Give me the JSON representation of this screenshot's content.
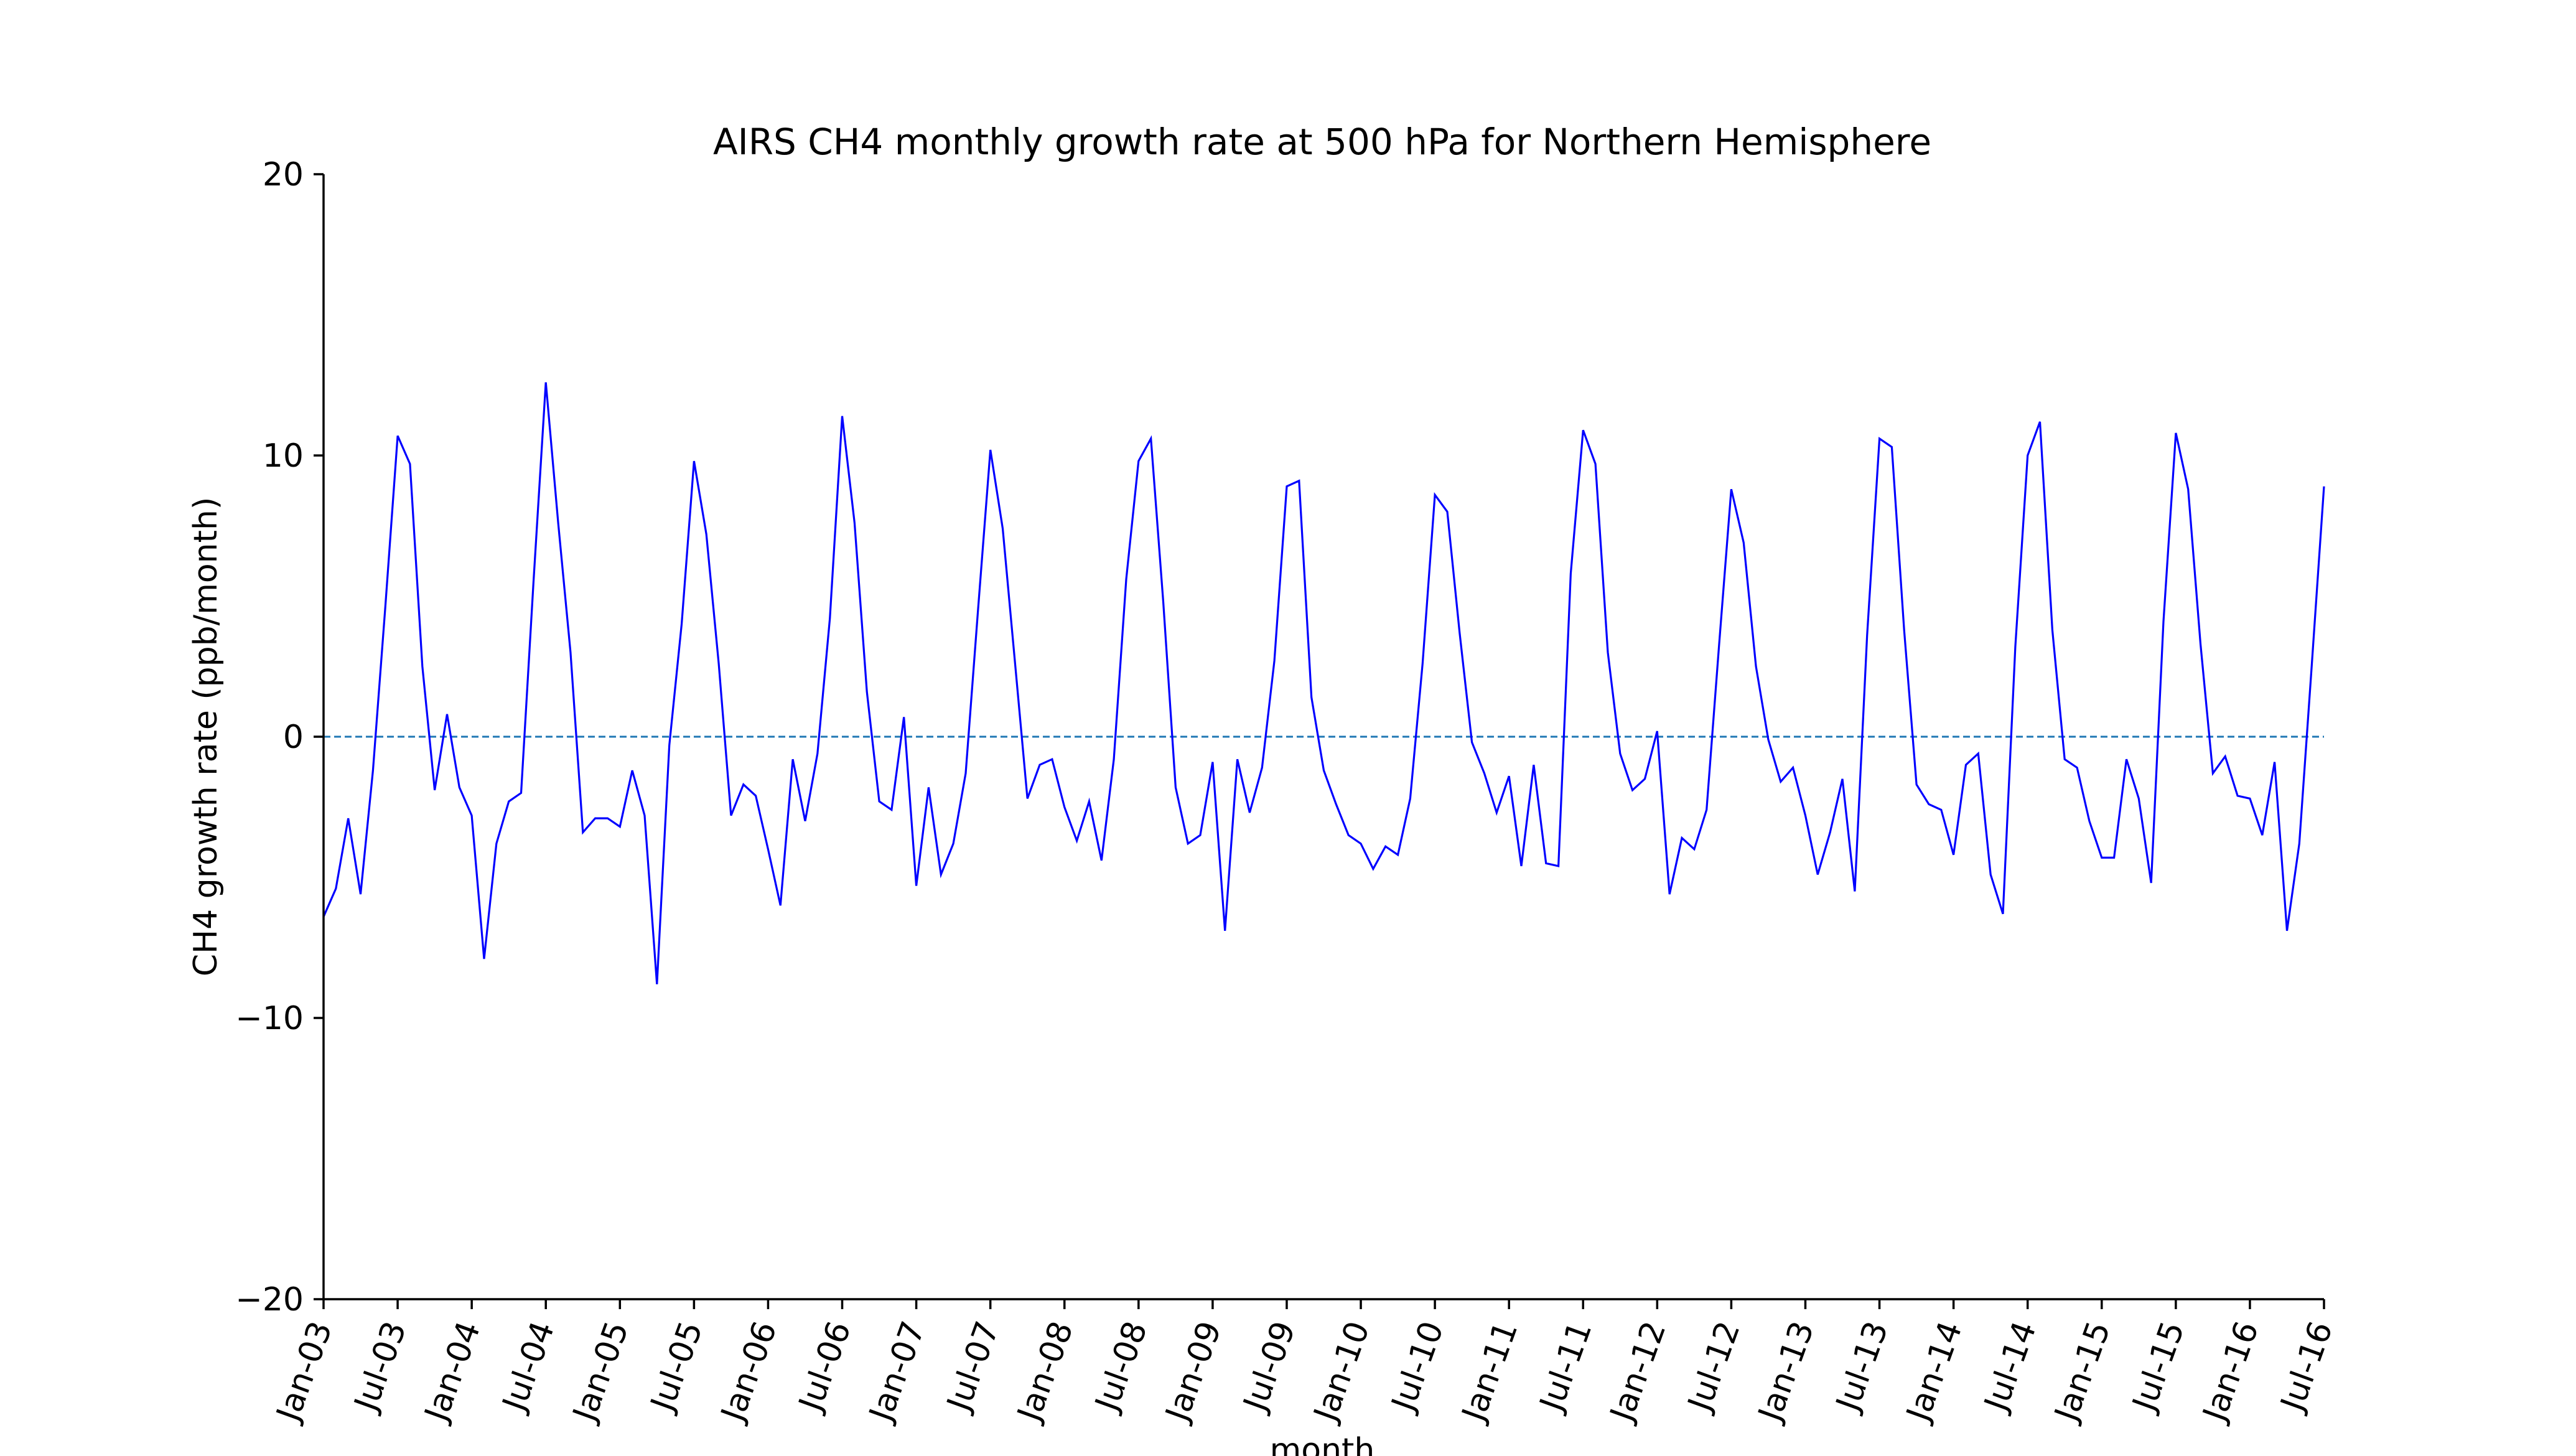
{
  "chart_data": {
    "type": "line",
    "title": "AIRS CH4 monthly growth rate at 500 hPa for Northern Hemisphere",
    "xlabel": "month",
    "ylabel": "CH4 growth rate (ppb/month)",
    "ylim": [
      -20,
      20
    ],
    "yticks": [
      -20,
      -10,
      0,
      10,
      20
    ],
    "ytick_labels": [
      "−20",
      "−10",
      "0",
      "10",
      "20"
    ],
    "xlim": [
      "Jan-03",
      "Jul-16"
    ],
    "xticks": [
      "Jan-03",
      "Jul-03",
      "Jan-04",
      "Jul-04",
      "Jan-05",
      "Jul-05",
      "Jan-06",
      "Jul-06",
      "Jan-07",
      "Jul-07",
      "Jan-08",
      "Jul-08",
      "Jan-09",
      "Jul-09",
      "Jan-10",
      "Jul-10",
      "Jan-11",
      "Jul-11",
      "Jan-12",
      "Jul-12",
      "Jan-13",
      "Jul-13",
      "Jan-14",
      "Jul-14",
      "Jan-15",
      "Jul-15",
      "Jan-16",
      "Jul-16"
    ],
    "grid": false,
    "reference_line": {
      "y": 0,
      "style": "dashed",
      "color": "#1f77b4"
    },
    "series": [
      {
        "color": "#0000ff",
        "x_start": "Jan-03",
        "x_step": "1 month",
        "values": [
          -6.4,
          -5.4,
          -2.9,
          -5.6,
          -1.2,
          4.6,
          10.7,
          9.7,
          2.5,
          -1.9,
          0.8,
          -1.8,
          -2.8,
          -7.9,
          -3.8,
          -2.3,
          -2.0,
          5.5,
          12.6,
          7.6,
          3.0,
          -3.4,
          -2.9,
          -2.9,
          -3.2,
          -1.2,
          -2.8,
          -8.8,
          -0.3,
          4.0,
          9.8,
          7.2,
          2.6,
          -2.8,
          -1.7,
          -2.1,
          -4.0,
          -6.0,
          -0.8,
          -3.0,
          -0.6,
          4.2,
          11.4,
          7.6,
          1.6,
          -2.3,
          -2.6,
          0.7,
          -5.3,
          -1.8,
          -4.9,
          -3.8,
          -1.3,
          4.5,
          10.2,
          7.4,
          2.6,
          -2.2,
          -1.0,
          -0.8,
          -2.5,
          -3.7,
          -2.3,
          -4.4,
          -0.8,
          5.6,
          9.8,
          10.6,
          4.8,
          -1.8,
          -3.8,
          -3.5,
          -0.9,
          -6.9,
          -0.8,
          -2.7,
          -1.1,
          2.7,
          8.9,
          9.1,
          1.4,
          -1.2,
          -2.4,
          -3.5,
          -3.8,
          -4.7,
          -3.9,
          -4.2,
          -2.2,
          2.6,
          8.6,
          8.0,
          3.7,
          -0.2,
          -1.3,
          -2.7,
          -1.4,
          -4.6,
          -1.0,
          -4.5,
          -4.6,
          5.8,
          10.9,
          9.7,
          3.0,
          -0.6,
          -1.9,
          -1.5,
          0.2,
          -5.6,
          -3.6,
          -4.0,
          -2.6,
          3.2,
          8.8,
          6.9,
          2.5,
          -0.1,
          -1.6,
          -1.1,
          -2.8,
          -4.9,
          -3.4,
          -1.5,
          -5.5,
          3.6,
          10.6,
          10.3,
          3.8,
          -1.7,
          -2.4,
          -2.6,
          -4.2,
          -1.0,
          -0.6,
          -4.9,
          -6.3,
          3.2,
          10.0,
          11.2,
          3.8,
          -0.8,
          -1.1,
          -3.0,
          -4.3,
          -4.3,
          -0.8,
          -2.2,
          -5.2,
          4.1,
          10.8,
          8.8,
          3.3,
          -1.3,
          -0.7,
          -2.1,
          -2.2,
          -3.5,
          -0.9,
          -6.9,
          -3.8,
          2.5,
          8.9
        ]
      }
    ]
  }
}
